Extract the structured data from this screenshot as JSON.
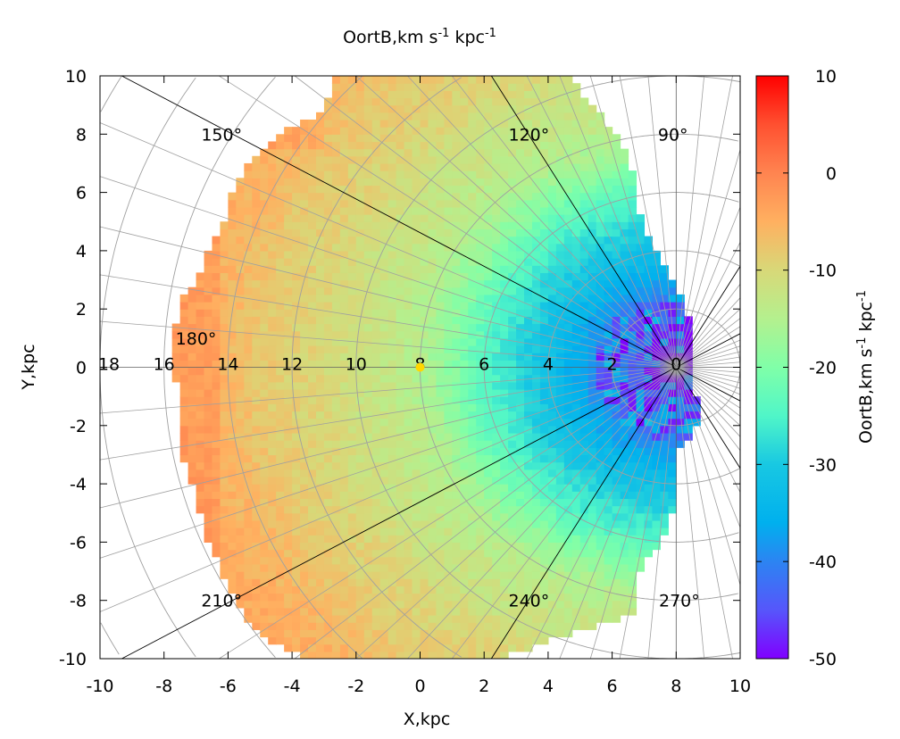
{
  "chart_data": {
    "type": "heatmap",
    "title": "OortB,km s",
    "title_sup1": "-1",
    "title_mid": " kpc",
    "title_sup2": "-1",
    "xlabel": "X,kpc",
    "ylabel": "Y,kpc",
    "xlim": [
      -10,
      10
    ],
    "ylim": [
      -10,
      10
    ],
    "xticks": [
      "-10",
      "-8",
      "-6",
      "-4",
      "-2",
      "0",
      "2",
      "4",
      "6",
      "8",
      "10"
    ],
    "yticks": [
      "10",
      "8",
      "6",
      "4",
      "2",
      "0",
      "-2",
      "-4",
      "-6",
      "-8",
      "-10"
    ],
    "colorbar": {
      "label": "OortB,km s",
      "label_sup1": "-1",
      "label_mid": " kpc",
      "label_sup2": "-1",
      "range": [
        -50,
        10
      ],
      "ticks": [
        "10",
        "0",
        "-10",
        "-20",
        "-30",
        "-40",
        "-50"
      ],
      "palette": [
        {
          "v": -50,
          "c": "#8000ff"
        },
        {
          "v": -45,
          "c": "#5656fb"
        },
        {
          "v": -40,
          "c": "#2c84f2"
        },
        {
          "v": -36,
          "c": "#00b0ee"
        },
        {
          "v": -30,
          "c": "#18c8e2"
        },
        {
          "v": -25,
          "c": "#50f6c8"
        },
        {
          "v": -20,
          "c": "#80ffa8"
        },
        {
          "v": -15,
          "c": "#b4f08e"
        },
        {
          "v": -10,
          "c": "#d8d878"
        },
        {
          "v": -5,
          "c": "#ffb060"
        },
        {
          "v": 0,
          "c": "#ff8450"
        },
        {
          "v": 5,
          "c": "#ff5030"
        },
        {
          "v": 10,
          "c": "#ff0000"
        }
      ]
    },
    "galactic_center": [
      8,
      0
    ],
    "sun_position": [
      0,
      0
    ],
    "sun_color": "#ffd700",
    "polar_grid": {
      "radius_labels": [
        "18",
        "16",
        "14",
        "12",
        "10",
        "8",
        "6",
        "4",
        "2",
        "0"
      ],
      "angle_labels": [
        "90°",
        "120°",
        "150°",
        "180°",
        "210°",
        "240°",
        "270°"
      ],
      "circle_step_kpc": 2,
      "ray_step_deg": 5,
      "major_ray_step_deg": 30,
      "grid": true
    },
    "radial_profile": {
      "R_kpc": [
        0,
        1,
        2,
        3,
        4,
        5,
        6,
        7,
        8,
        9,
        10,
        11,
        12,
        13,
        14,
        15,
        16,
        17,
        18
      ],
      "OortB": [
        -50,
        -47,
        -42,
        -37,
        -32,
        -28,
        -24,
        -19,
        -15,
        -13,
        -12,
        -10,
        -9,
        -8,
        -6,
        -5,
        -4,
        -3,
        -3
      ]
    },
    "coverage_polygon_xy_kpc": [
      [
        -2.6,
        10
      ],
      [
        4.7,
        10
      ],
      [
        5.3,
        9
      ],
      [
        6.2,
        8
      ],
      [
        6.6,
        7
      ],
      [
        6.8,
        6
      ],
      [
        6.9,
        5
      ],
      [
        7.4,
        4
      ],
      [
        7.9,
        3
      ],
      [
        8.3,
        2
      ],
      [
        8.6,
        1.5
      ],
      [
        8.5,
        0.5
      ],
      [
        8.6,
        -1
      ],
      [
        8.8,
        -1.5
      ],
      [
        8.4,
        -2.5
      ],
      [
        7.9,
        -3
      ],
      [
        7.9,
        -4
      ],
      [
        7.9,
        -5
      ],
      [
        7.5,
        -6
      ],
      [
        6.9,
        -7
      ],
      [
        6.7,
        -8
      ],
      [
        6.7,
        -8.5
      ],
      [
        5,
        -9
      ],
      [
        2.5,
        -10
      ],
      [
        -3.6,
        -10
      ],
      [
        -5,
        -9.2
      ],
      [
        -5.8,
        -8
      ],
      [
        -6.6,
        -6
      ],
      [
        -7.1,
        -4
      ],
      [
        -7.5,
        -3
      ],
      [
        -7.5,
        -1
      ],
      [
        -7.7,
        0
      ],
      [
        -7.6,
        2
      ],
      [
        -7,
        3
      ],
      [
        -6.6,
        4
      ],
      [
        -6.1,
        5
      ],
      [
        -5.9,
        6
      ],
      [
        -5.4,
        7
      ],
      [
        -4.4,
        8
      ],
      [
        -3,
        8.8
      ]
    ]
  }
}
